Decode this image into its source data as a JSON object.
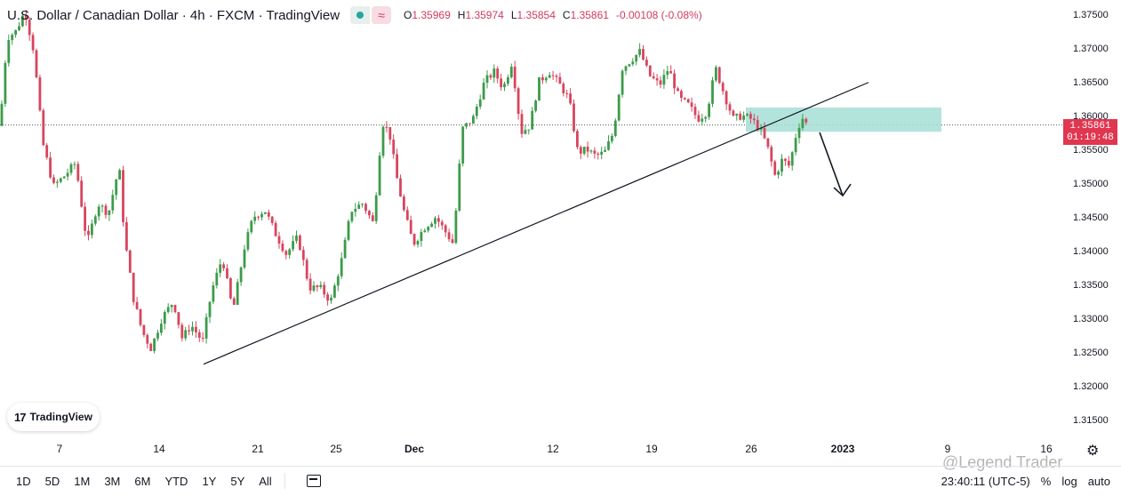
{
  "header": {
    "title": "U.S. Dollar / Canadian Dollar · 4h · FXCM · TradingView",
    "wave_symbol": "≈",
    "ohlc": {
      "o_label": "O",
      "o": "1.35969",
      "h_label": "H",
      "h": "1.35974",
      "l_label": "L",
      "l": "1.35854",
      "c_label": "C",
      "c": "1.35861",
      "change": "-0.00108 (-0.08%)"
    }
  },
  "price_tag": {
    "price": "1.35861",
    "countdown": "01:19:48"
  },
  "logo": {
    "mark": "17",
    "text": "TradingView"
  },
  "bottom": {
    "ranges": [
      "1D",
      "5D",
      "1M",
      "3M",
      "6M",
      "YTD",
      "1Y",
      "5Y",
      "All"
    ],
    "time": "23:40:11 (UTC-5)",
    "percent": "%",
    "log": "log",
    "auto": "auto"
  },
  "watermark": "@Legend Trader",
  "colors": {
    "up": "#3c9b4b",
    "down": "#d8455e",
    "zone": "#a6dfd6",
    "tag": "#e03650"
  },
  "icons": {
    "settings": "gear-icon",
    "calendar": "calendar-icon"
  },
  "chart_data": {
    "type": "candlestick",
    "title": "U.S. Dollar / Canadian Dollar · 4h · FXCM · TradingView",
    "y_ticks": [
      "1.37500",
      "1.37000",
      "1.36500",
      "1.36000",
      "1.35500",
      "1.35000",
      "1.34500",
      "1.34000",
      "1.33500",
      "1.33000",
      "1.32500",
      "1.32000",
      "1.31500"
    ],
    "ylim": [
      1.3125,
      1.3772
    ],
    "x_ticks": [
      "7",
      "14",
      "21",
      "25",
      "Dec",
      "12",
      "19",
      "26",
      "2023",
      "9",
      "16"
    ],
    "last_price": 1.35861,
    "close_path": [
      [
        0,
        1.3585
      ],
      [
        8,
        1.3715
      ],
      [
        18,
        1.3725
      ],
      [
        28,
        1.3755
      ],
      [
        38,
        1.3695
      ],
      [
        48,
        1.356
      ],
      [
        60,
        1.3495
      ],
      [
        72,
        1.351
      ],
      [
        85,
        1.353
      ],
      [
        98,
        1.341
      ],
      [
        110,
        1.347
      ],
      [
        122,
        1.3455
      ],
      [
        134,
        1.3525
      ],
      [
        140,
        1.342
      ],
      [
        150,
        1.333
      ],
      [
        160,
        1.328
      ],
      [
        170,
        1.3255
      ],
      [
        182,
        1.33
      ],
      [
        195,
        1.3325
      ],
      [
        205,
        1.327
      ],
      [
        215,
        1.329
      ],
      [
        228,
        1.3265
      ],
      [
        238,
        1.334
      ],
      [
        250,
        1.339
      ],
      [
        262,
        1.331
      ],
      [
        275,
        1.3405
      ],
      [
        285,
        1.345
      ],
      [
        298,
        1.346
      ],
      [
        310,
        1.3425
      ],
      [
        322,
        1.3395
      ],
      [
        335,
        1.342
      ],
      [
        348,
        1.3345
      ],
      [
        360,
        1.3345
      ],
      [
        372,
        1.3325
      ],
      [
        385,
        1.339
      ],
      [
        395,
        1.346
      ],
      [
        408,
        1.347
      ],
      [
        420,
        1.344
      ],
      [
        430,
        1.359
      ],
      [
        438,
        1.3575
      ],
      [
        446,
        1.351
      ],
      [
        455,
        1.3455
      ],
      [
        465,
        1.341
      ],
      [
        478,
        1.3435
      ],
      [
        490,
        1.345
      ],
      [
        500,
        1.343
      ],
      [
        510,
        1.341
      ],
      [
        520,
        1.358
      ],
      [
        532,
        1.3595
      ],
      [
        545,
        1.365
      ],
      [
        556,
        1.3665
      ],
      [
        566,
        1.364
      ],
      [
        576,
        1.368
      ],
      [
        586,
        1.3575
      ],
      [
        596,
        1.3585
      ],
      [
        606,
        1.365
      ],
      [
        618,
        1.3665
      ],
      [
        630,
        1.3645
      ],
      [
        640,
        1.3625
      ],
      [
        650,
        1.3545
      ],
      [
        660,
        1.355
      ],
      [
        670,
        1.354
      ],
      [
        680,
        1.3545
      ],
      [
        690,
        1.3575
      ],
      [
        700,
        1.367
      ],
      [
        712,
        1.3685
      ],
      [
        720,
        1.3695
      ],
      [
        730,
        1.366
      ],
      [
        742,
        1.3645
      ],
      [
        752,
        1.367
      ],
      [
        764,
        1.3625
      ],
      [
        775,
        1.3615
      ],
      [
        785,
        1.3595
      ],
      [
        795,
        1.3605
      ],
      [
        805,
        1.367
      ],
      [
        815,
        1.363
      ],
      [
        825,
        1.3595
      ],
      [
        835,
        1.36
      ],
      [
        845,
        1.3595
      ],
      [
        855,
        1.358
      ],
      [
        863,
        1.3555
      ],
      [
        872,
        1.351
      ],
      [
        880,
        1.3535
      ],
      [
        888,
        1.3525
      ],
      [
        896,
        1.3575
      ],
      [
        902,
        1.3598
      ],
      [
        908,
        1.3586
      ]
    ],
    "trendline": {
      "from": [
        "14 (≈Nov 16)",
        1.3232
      ],
      "to": [
        "≈Dec 30",
        1.3649
      ]
    },
    "supply_zone": {
      "low": 1.3576,
      "high": 1.3612,
      "from": "≈Dec 26",
      "to": "≈Jan 6"
    },
    "projection_arrow": {
      "from_price": 1.3575,
      "to_price": 1.3492
    }
  }
}
